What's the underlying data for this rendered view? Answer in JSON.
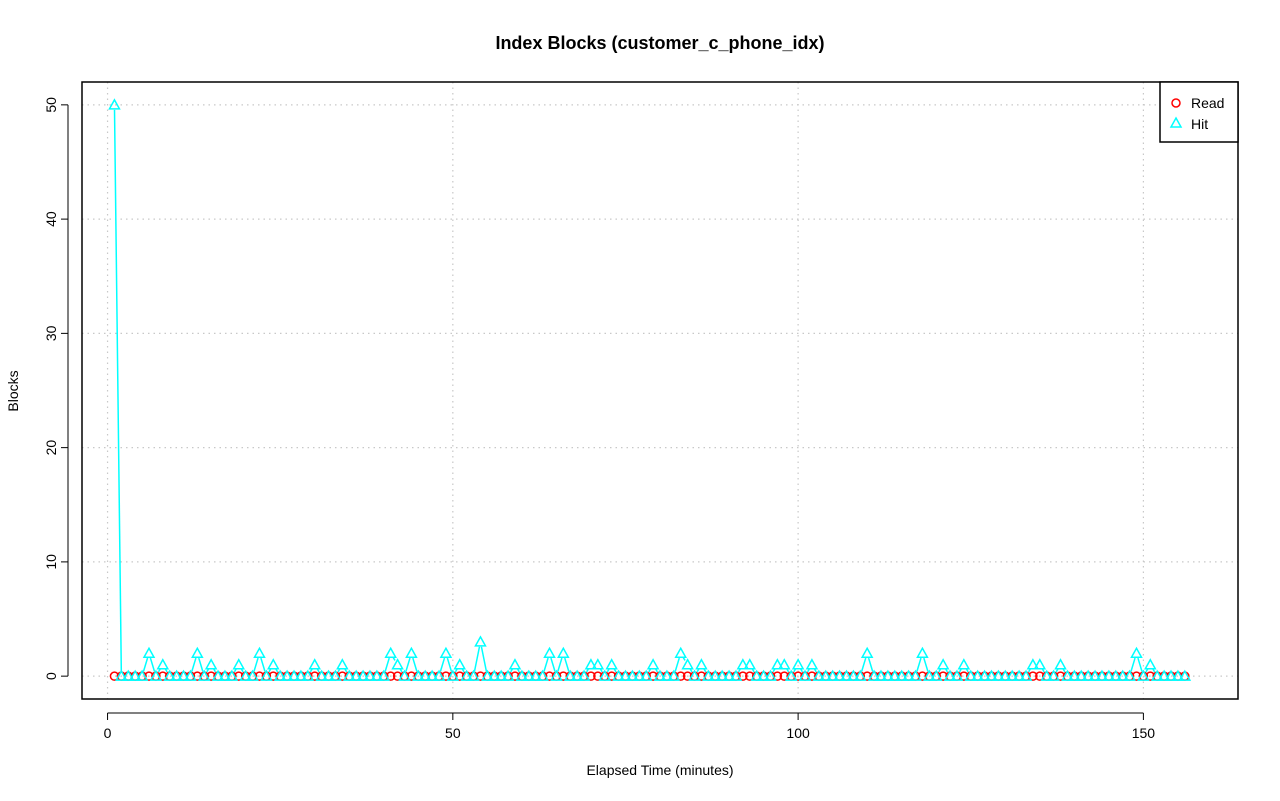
{
  "chart_data": {
    "type": "line",
    "title": "Index Blocks (customer_c_phone_idx)",
    "xlabel": "Elapsed Time (minutes)",
    "ylabel": "Blocks",
    "xlim": [
      -3.7,
      163.7
    ],
    "ylim": [
      -2,
      52
    ],
    "xticks": [
      0,
      50,
      100,
      150
    ],
    "yticks": [
      0,
      10,
      20,
      30,
      40,
      50
    ],
    "grid": true,
    "legend_position": "top-right",
    "series": [
      {
        "name": "Read",
        "color": "#ff0000",
        "marker": "circle",
        "x_start": 1,
        "x_end": 156,
        "values": "all-zero",
        "points": []
      },
      {
        "name": "Hit",
        "color": "#00ffff",
        "marker": "triangle",
        "x_start": 1,
        "x_end": 156,
        "base_value": 0,
        "nonzero": [
          [
            1,
            50
          ],
          [
            6,
            2
          ],
          [
            8,
            1
          ],
          [
            13,
            2
          ],
          [
            15,
            1
          ],
          [
            19,
            1
          ],
          [
            22,
            2
          ],
          [
            24,
            1
          ],
          [
            30,
            1
          ],
          [
            34,
            1
          ],
          [
            41,
            2
          ],
          [
            42,
            1
          ],
          [
            44,
            2
          ],
          [
            49,
            2
          ],
          [
            51,
            1
          ],
          [
            54,
            3
          ],
          [
            59,
            1
          ],
          [
            64,
            2
          ],
          [
            66,
            2
          ],
          [
            70,
            1
          ],
          [
            71,
            1
          ],
          [
            73,
            1
          ],
          [
            79,
            1
          ],
          [
            83,
            2
          ],
          [
            84,
            1
          ],
          [
            86,
            1
          ],
          [
            92,
            1
          ],
          [
            93,
            1
          ],
          [
            97,
            1
          ],
          [
            98,
            1
          ],
          [
            100,
            1
          ],
          [
            102,
            1
          ],
          [
            110,
            2
          ],
          [
            118,
            2
          ],
          [
            121,
            1
          ],
          [
            124,
            1
          ],
          [
            134,
            1
          ],
          [
            135,
            1
          ],
          [
            138,
            1
          ],
          [
            149,
            2
          ],
          [
            151,
            1
          ]
        ]
      }
    ]
  }
}
